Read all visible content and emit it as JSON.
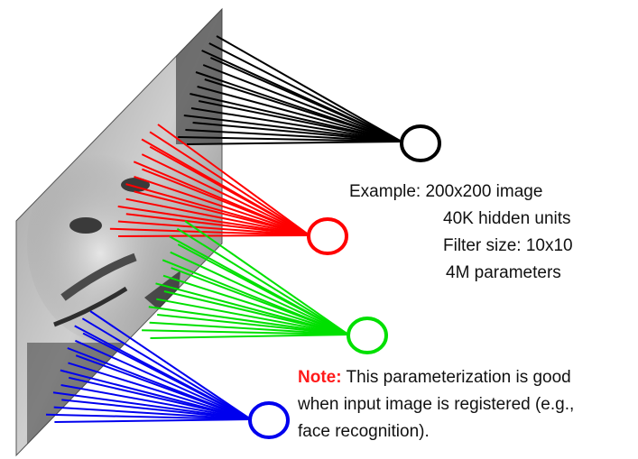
{
  "example": {
    "line1": "Example: 200x200 image",
    "line2": "40K hidden units",
    "line3": "Filter size: 10x10",
    "line4": "4M parameters"
  },
  "note": {
    "label": "Note:",
    "line1": " This parameterization is good",
    "line2": "when input image is registered (e.g.,",
    "line3": "face recognition)."
  },
  "colors": {
    "black": "#000000",
    "red": "#ff0000",
    "green": "#00e000",
    "blue": "#0000ee",
    "note": "#ff1a1a"
  },
  "units": [
    {
      "name": "black-hidden-unit",
      "color_key": "black"
    },
    {
      "name": "red-hidden-unit",
      "color_key": "red"
    },
    {
      "name": "green-hidden-unit",
      "color_key": "green"
    },
    {
      "name": "blue-hidden-unit",
      "color_key": "blue"
    }
  ]
}
